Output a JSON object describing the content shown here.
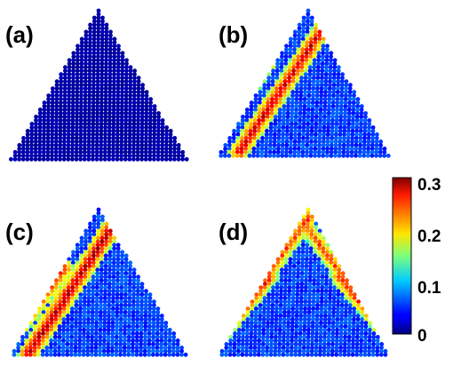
{
  "figure": {
    "panels": [
      {
        "label": "(a)",
        "name": "panel-a",
        "bands": []
      },
      {
        "label": "(b)",
        "name": "panel-b",
        "bands": [
          {
            "p1": [
              0.66,
              0.03
            ],
            "p2": [
              0.12,
              0.97
            ],
            "width": 0.06,
            "level": 0.28
          },
          {
            "p1": [
              0.28,
              0.36
            ],
            "p2": [
              0.05,
              0.76
            ],
            "width": 0.055,
            "level": 0.27
          }
        ]
      },
      {
        "label": "(c)",
        "name": "panel-c",
        "bands": [
          {
            "p1": [
              0.62,
              0.03
            ],
            "p2": [
              0.1,
              0.98
            ],
            "width": 0.06,
            "level": 0.29
          },
          {
            "p1": [
              0.3,
              0.4
            ],
            "p2": [
              0.06,
              0.78
            ],
            "width": 0.055,
            "level": 0.27
          }
        ]
      },
      {
        "label": "(d)",
        "name": "panel-d",
        "bands": [
          {
            "p1": [
              0.3,
              0.46
            ],
            "p2": [
              0.0,
              0.88
            ],
            "width": 0.05,
            "level": 0.26
          },
          {
            "p1": [
              0.55,
              0.02
            ],
            "p2": [
              0.12,
              0.7
            ],
            "width": 0.05,
            "level": 0.25
          },
          {
            "p1": [
              0.45,
              0.02
            ],
            "p2": [
              0.88,
              0.7
            ],
            "width": 0.05,
            "level": 0.25
          },
          {
            "p1": [
              0.7,
              0.46
            ],
            "p2": [
              1.0,
              0.88
            ],
            "width": 0.05,
            "level": 0.26
          }
        ]
      }
    ]
  },
  "colorbar": {
    "min": 0,
    "max": 0.3,
    "ticks": [
      {
        "value": 0.3,
        "label": "0.3"
      },
      {
        "value": 0.2,
        "label": "0.2"
      },
      {
        "value": 0.1,
        "label": "0.1"
      },
      {
        "value": 0,
        "label": "0"
      }
    ],
    "colormap": "jet"
  }
}
